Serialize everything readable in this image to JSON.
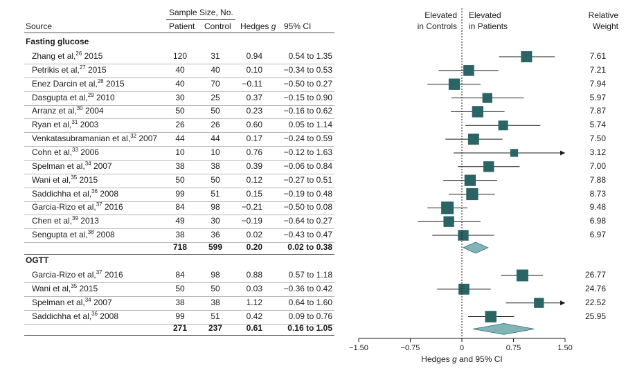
{
  "header": {
    "sample_size": "Sample Size, No.",
    "source": "Source",
    "patient": "Patient",
    "control": "Control",
    "hedges": "Hedges g",
    "ci": "95% CI",
    "left_label_1": "Elevated",
    "left_label_2": "in Controls",
    "right_label_1": "Elevated",
    "right_label_2": "in Patients",
    "weight_1": "Relative",
    "weight_2": "Weight"
  },
  "chart_data": {
    "type": "forest",
    "xlabel": "Hedges g and 95% CI",
    "xlim": [
      -1.5,
      1.5
    ],
    "xticks": [
      "−1.50",
      "−0.75",
      "0",
      "0.75",
      "1.50"
    ],
    "xtick_values": [
      -1.5,
      -0.75,
      0,
      0.75,
      1.5
    ],
    "groups": [
      {
        "name": "Fasting glucose",
        "studies": [
          {
            "author": "Zhang et al,",
            "ref": "26",
            "year": "2015",
            "patient": "120",
            "control": "31",
            "g": 0.94,
            "g_text": "0.94",
            "lo": 0.54,
            "hi": 1.35,
            "ci_text": "0.54 to 1.35",
            "weight": "7.61"
          },
          {
            "author": "Petrikis et al,",
            "ref": "27",
            "year": "2015",
            "patient": "40",
            "control": "40",
            "g": 0.1,
            "g_text": "0.10",
            "lo": -0.34,
            "hi": 0.53,
            "ci_text": "−0.34 to 0.53",
            "weight": "7.21"
          },
          {
            "author": "Enez Darcin et al,",
            "ref": "28",
            "year": "2015",
            "patient": "40",
            "control": "70",
            "g": -0.11,
            "g_text": "−0.11",
            "lo": -0.5,
            "hi": 0.27,
            "ci_text": "−0.50 to 0.27",
            "weight": "7.94"
          },
          {
            "author": "Dasgupta et al,",
            "ref": "29",
            "year": "2010",
            "patient": "30",
            "control": "25",
            "g": 0.37,
            "g_text": "0.37",
            "lo": -0.15,
            "hi": 0.9,
            "ci_text": "−0.15 to 0.90",
            "weight": "5.97"
          },
          {
            "author": "Arranz et al,",
            "ref": "30",
            "year": "2004",
            "patient": "50",
            "control": "50",
            "g": 0.23,
            "g_text": "0.23",
            "lo": -0.16,
            "hi": 0.62,
            "ci_text": "−0.16 to 0.62",
            "weight": "7.87"
          },
          {
            "author": "Ryan et al,",
            "ref": "31",
            "year": "2003",
            "patient": "26",
            "control": "26",
            "g": 0.6,
            "g_text": "0.60",
            "lo": 0.05,
            "hi": 1.14,
            "ci_text": "0.05 to 1.14",
            "weight": "5.74"
          },
          {
            "author": "Venkatasubramanian et al,",
            "ref": "32",
            "year": "2007",
            "patient": "44",
            "control": "44",
            "g": 0.17,
            "g_text": "0.17",
            "lo": -0.24,
            "hi": 0.59,
            "ci_text": "−0.24 to 0.59",
            "weight": "7.50"
          },
          {
            "author": "Cohn et al,",
            "ref": "33",
            "year": "2006",
            "patient": "10",
            "control": "10",
            "g": 0.76,
            "g_text": "0.76",
            "lo": -0.12,
            "hi": 1.63,
            "ci_text": "−0.12 to 1.63",
            "weight": "3.12"
          },
          {
            "author": "Spelman et al,",
            "ref": "34",
            "year": "2007",
            "patient": "38",
            "control": "38",
            "g": 0.39,
            "g_text": "0.39",
            "lo": -0.06,
            "hi": 0.84,
            "ci_text": "−0.06 to 0.84",
            "weight": "7.00"
          },
          {
            "author": "Wani et al,",
            "ref": "35",
            "year": "2015",
            "patient": "50",
            "control": "50",
            "g": 0.12,
            "g_text": "0.12",
            "lo": -0.27,
            "hi": 0.51,
            "ci_text": "−0.27 to 0.51",
            "weight": "7.88"
          },
          {
            "author": "Saddichha et al,",
            "ref": "36",
            "year": "2008",
            "patient": "99",
            "control": "51",
            "g": 0.15,
            "g_text": "0.15",
            "lo": -0.19,
            "hi": 0.48,
            "ci_text": "−0.19 to 0.48",
            "weight": "8.73"
          },
          {
            "author": "Garcia-Rizo et al,",
            "ref": "37",
            "year": "2016",
            "patient": "84",
            "control": "98",
            "g": -0.21,
            "g_text": "−0.21",
            "lo": -0.5,
            "hi": 0.08,
            "ci_text": "−0.50 to 0.08",
            "weight": "9.48"
          },
          {
            "author": "Chen et al,",
            "ref": "39",
            "year": "2013",
            "patient": "49",
            "control": "30",
            "g": -0.19,
            "g_text": "−0.19",
            "lo": -0.64,
            "hi": 0.27,
            "ci_text": "−0.64 to 0.27",
            "weight": "6.98"
          },
          {
            "author": "Sengupta et al,",
            "ref": "38",
            "year": "2008",
            "patient": "38",
            "control": "36",
            "g": 0.02,
            "g_text": "0.02",
            "lo": -0.43,
            "hi": 0.47,
            "ci_text": "−0.43 to 0.47",
            "weight": "6.97"
          }
        ],
        "pooled": {
          "patient": "718",
          "control": "599",
          "g": 0.2,
          "g_text": "0.20",
          "lo": 0.02,
          "hi": 0.38,
          "ci_text": "0.02 to 0.38"
        }
      },
      {
        "name": "OGTT",
        "studies": [
          {
            "author": "Garcia-Rizo et al,",
            "ref": "37",
            "year": "2016",
            "patient": "84",
            "control": "98",
            "g": 0.88,
            "g_text": "0.88",
            "lo": 0.57,
            "hi": 1.18,
            "ci_text": "0.57 to 1.18",
            "weight": "26.77"
          },
          {
            "author": "Wani et al,",
            "ref": "35",
            "year": "2015",
            "patient": "50",
            "control": "50",
            "g": 0.03,
            "g_text": "0.03",
            "lo": -0.36,
            "hi": 0.42,
            "ci_text": "−0.36 to 0.42",
            "weight": "24.76"
          },
          {
            "author": "Spelman et al,",
            "ref": "34",
            "year": "2007",
            "patient": "38",
            "control": "38",
            "g": 1.12,
            "g_text": "1.12",
            "lo": 0.64,
            "hi": 1.6,
            "ci_text": "0.64 to 1.60",
            "weight": "22.52"
          },
          {
            "author": "Saddichha et al,",
            "ref": "36",
            "year": "2008",
            "patient": "99",
            "control": "51",
            "g": 0.42,
            "g_text": "0.42",
            "lo": 0.09,
            "hi": 0.76,
            "ci_text": "0.09 to 0.76",
            "weight": "25.95"
          }
        ],
        "pooled": {
          "patient": "271",
          "control": "237",
          "g": 0.61,
          "g_text": "0.61",
          "lo": 0.16,
          "hi": 1.05,
          "ci_text": "0.16 to 1.05"
        }
      }
    ]
  },
  "colors": {
    "marker": "#2a6464",
    "diamond": "#7fb5b8",
    "line": "#1a1a1a"
  }
}
